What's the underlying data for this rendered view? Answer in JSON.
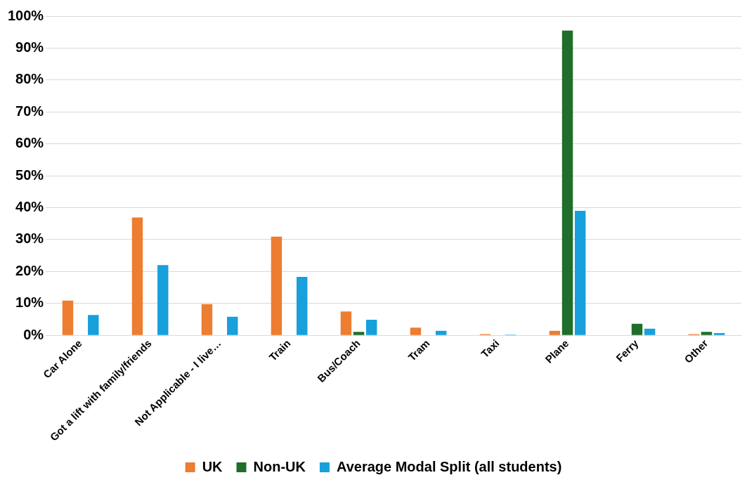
{
  "chart_data": {
    "type": "bar",
    "categories": [
      "Car Alone",
      "Got a lift with family/friends",
      "Not Applicable - I live…",
      "Train",
      "Bus/Coach",
      "Tram",
      "Taxi",
      "Plane",
      "Ferry",
      "Other"
    ],
    "series": [
      {
        "name": "UK",
        "color": "#ed7d31",
        "values": [
          10.9,
          36.9,
          9.8,
          30.9,
          7.5,
          2.4,
          0.4,
          1.4,
          0,
          0.4
        ]
      },
      {
        "name": "Non-UK",
        "color": "#1f6e2b",
        "values": [
          0,
          0,
          0,
          0,
          1.1,
          0,
          0,
          95.5,
          3.6,
          1.1
        ]
      },
      {
        "name": "Average Modal Split (all students)",
        "color": "#17a0db",
        "values": [
          6.4,
          22,
          5.8,
          18.3,
          4.9,
          1.4,
          0.2,
          39,
          2.1,
          0.7
        ]
      }
    ],
    "ylim": [
      0,
      100
    ],
    "yticks": [
      {
        "value": 0,
        "label": "0%"
      },
      {
        "value": 10,
        "label": "10%"
      },
      {
        "value": 20,
        "label": "20%"
      },
      {
        "value": 30,
        "label": "30%"
      },
      {
        "value": 40,
        "label": "40%"
      },
      {
        "value": 50,
        "label": "50%"
      },
      {
        "value": 60,
        "label": "60%"
      },
      {
        "value": 70,
        "label": "70%"
      },
      {
        "value": 80,
        "label": "80%"
      },
      {
        "value": 90,
        "label": "90%"
      },
      {
        "value": 100,
        "label": "100%"
      }
    ],
    "grid": "y",
    "legend": "bottom"
  }
}
